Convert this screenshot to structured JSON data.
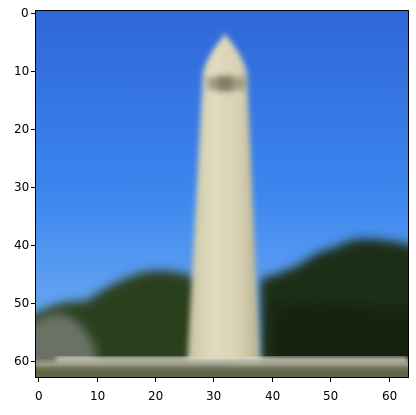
{
  "image": {
    "subject": "obelisk",
    "colors": {
      "sky_top": "#2f67d8",
      "sky_mid": "#3c86ee",
      "sky_bottom": "#7cb7f5",
      "tower": "#d8d2b2",
      "tower_shadow": "#b9b28f",
      "tree_dark": "#1b2b12",
      "tree_mid": "#2f4a1d",
      "ground": "#a8aa95",
      "pavement": "#d7d5c9"
    }
  },
  "axes": {
    "x_ticks": [
      "0",
      "10",
      "20",
      "30",
      "40",
      "50",
      "60"
    ],
    "y_ticks": [
      "0",
      "10",
      "20",
      "30",
      "40",
      "50",
      "60"
    ],
    "x_range": [
      -0.5,
      63.5
    ],
    "y_range": [
      63.5,
      -0.5
    ]
  }
}
